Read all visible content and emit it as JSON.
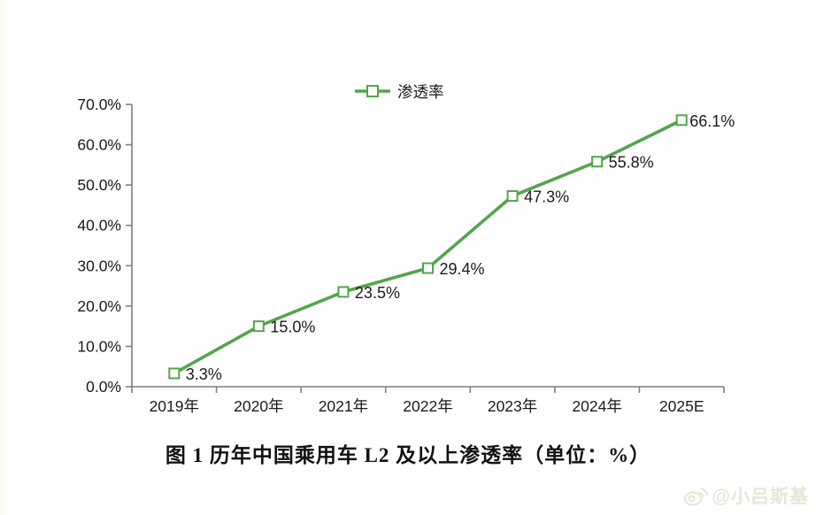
{
  "chart_data": {
    "type": "line",
    "title": "图 1  历年中国乘用车 L2 及以上渗透率（单位：%）",
    "legend": "渗透率",
    "legend_position": "top-center",
    "categories": [
      "2019年",
      "2020年",
      "2021年",
      "2022年",
      "2023年",
      "2024年",
      "2025E"
    ],
    "series": [
      {
        "name": "渗透率",
        "values": [
          3.3,
          15.0,
          23.5,
          29.4,
          47.3,
          55.8,
          66.1
        ],
        "point_labels": [
          "3.3%",
          "15.0%",
          "23.5%",
          "29.4%",
          "47.3%",
          "55.8%",
          "66.1%"
        ]
      }
    ],
    "ylim": [
      0,
      70
    ],
    "y_tick_values": [
      0,
      10,
      20,
      30,
      40,
      50,
      60,
      70
    ],
    "y_tick_labels": [
      "0.0%",
      "10.0%",
      "20.0%",
      "30.0%",
      "40.0%",
      "50.0%",
      "60.0%",
      "70.0%"
    ],
    "grid": false,
    "colors": {
      "line": "#52A64A",
      "marker_fill": "#ffffff",
      "axis": "#7f7f7f",
      "text": "#1a1a1a"
    }
  },
  "watermark": {
    "text": "@小吕斯基",
    "icon": "weibo-icon",
    "color": "#e9e5d8"
  }
}
